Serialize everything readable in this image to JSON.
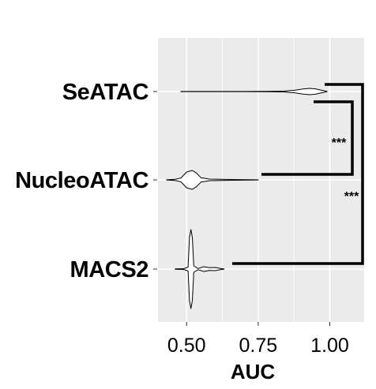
{
  "chart_data": {
    "type": "violin",
    "orientation": "horizontal",
    "xlabel": "AUC",
    "xlim": [
      0.4,
      1.12
    ],
    "xticks": [
      0.5,
      0.75,
      1.0
    ],
    "xtick_labels": [
      "0.50",
      "0.75",
      "1.00"
    ],
    "categories": [
      "SeATAC",
      "NucleoATAC",
      "MACS2"
    ],
    "grid": true,
    "series": [
      {
        "category": "SeATAC",
        "range": [
          0.48,
          0.99
        ],
        "mode": 0.92,
        "density": [
          [
            0.48,
            0.01
          ],
          [
            0.6,
            0.012
          ],
          [
            0.7,
            0.014
          ],
          [
            0.78,
            0.02
          ],
          [
            0.84,
            0.05
          ],
          [
            0.88,
            0.18
          ],
          [
            0.91,
            0.34
          ],
          [
            0.93,
            0.4
          ],
          [
            0.95,
            0.34
          ],
          [
            0.97,
            0.18
          ],
          [
            0.99,
            0.02
          ]
        ]
      },
      {
        "category": "NucleoATAC",
        "range": [
          0.43,
          0.75
        ],
        "mode": 0.52,
        "density": [
          [
            0.43,
            0.005
          ],
          [
            0.46,
            0.04
          ],
          [
            0.48,
            0.12
          ],
          [
            0.5,
            0.5
          ],
          [
            0.52,
            0.6
          ],
          [
            0.535,
            0.42
          ],
          [
            0.55,
            0.14
          ],
          [
            0.58,
            0.05
          ],
          [
            0.62,
            0.035
          ],
          [
            0.68,
            0.02
          ],
          [
            0.75,
            0.006
          ]
        ]
      },
      {
        "category": "MACS2",
        "range": [
          0.46,
          0.63
        ],
        "mode": 0.515,
        "density": [
          [
            0.46,
            0.005
          ],
          [
            0.49,
            0.01
          ],
          [
            0.505,
            0.05
          ],
          [
            0.51,
            0.8
          ],
          [
            0.515,
            1.0
          ],
          [
            0.52,
            0.8
          ],
          [
            0.525,
            0.08
          ],
          [
            0.54,
            0.015
          ],
          [
            0.56,
            0.06
          ],
          [
            0.58,
            0.035
          ],
          [
            0.6,
            0.04
          ],
          [
            0.62,
            0.012
          ],
          [
            0.63,
            0.004
          ]
        ]
      }
    ],
    "comparisons": [
      {
        "from": "NucleoATAC",
        "to": "SeATAC",
        "label": "***"
      },
      {
        "from": "MACS2",
        "to": "SeATAC",
        "label": "***"
      }
    ]
  },
  "colors": {
    "panel": "#ebebeb",
    "grid": "#ffffff",
    "violin_fill": "#ffffff",
    "violin_stroke": "#000000",
    "bracket": "#000000"
  }
}
